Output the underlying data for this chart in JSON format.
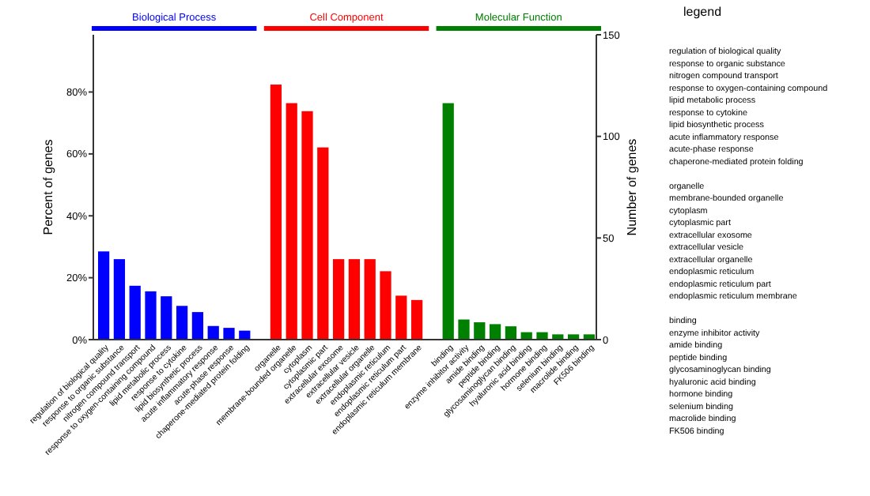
{
  "chart_data": {
    "type": "bar",
    "categories": [
      "regulation of biological quality",
      "response to organic substance",
      "nitrogen compound transport",
      "response to oxygen-containing compound",
      "lipid metabolic process",
      "response to cytokine",
      "lipid biosynthetic process",
      "acute inflammatory response",
      "acute-phase response",
      "chaperone-mediated protein folding",
      null,
      "organelle",
      "membrane-bounded organelle",
      "cytoplasm",
      "cytoplasmic part",
      "extracellular exosome",
      "extracellular vesicle",
      "extracellular organelle",
      "endoplasmic reticulum",
      "endoplasmic reticulum part",
      "endoplasmic reticulum membrane",
      null,
      "binding",
      "enzyme inhibitor activity",
      "amide binding",
      "peptide binding",
      "glycosaminoglycan binding",
      "hyaluronic acid binding",
      "hormone binding",
      "selenium binding",
      "macrolide binding",
      "FK506 binding"
    ],
    "series": [
      {
        "name": "Biological Process",
        "color": "#0000ff",
        "values": [
          28.5,
          26.0,
          17.4,
          15.6,
          14.0,
          10.9,
          8.9,
          4.4,
          3.8,
          2.9,
          null,
          null,
          null,
          null,
          null,
          null,
          null,
          null,
          null,
          null,
          null,
          null,
          null,
          null,
          null,
          null,
          null,
          null,
          null,
          null,
          null,
          null
        ]
      },
      {
        "name": "Cell Component",
        "color": "#ff0000",
        "values": [
          null,
          null,
          null,
          null,
          null,
          null,
          null,
          null,
          null,
          null,
          null,
          82.4,
          76.4,
          73.8,
          62.1,
          26.0,
          26.0,
          26.0,
          22.1,
          14.2,
          12.8,
          null,
          null,
          null,
          null,
          null,
          null,
          null,
          null,
          null,
          null,
          null
        ]
      },
      {
        "name": "Molecular Function",
        "color": "#008000",
        "values": [
          null,
          null,
          null,
          null,
          null,
          null,
          null,
          null,
          null,
          null,
          null,
          null,
          null,
          null,
          null,
          null,
          null,
          null,
          null,
          null,
          null,
          null,
          76.4,
          6.5,
          5.6,
          5.0,
          4.3,
          2.4,
          2.4,
          1.7,
          1.7,
          1.7
        ]
      }
    ],
    "ylabel": "Percent of genes",
    "y2label": "Number of genes",
    "ylim": [
      0,
      98.5
    ],
    "yticks": [
      {
        "value": 0,
        "label": "0%"
      },
      {
        "value": 20,
        "label": "20%"
      },
      {
        "value": 40,
        "label": "40%"
      },
      {
        "value": 60,
        "label": "60%"
      },
      {
        "value": 80,
        "label": "80%"
      }
    ],
    "y2lim": [
      0,
      150
    ],
    "y2ticks": [
      0,
      50,
      100,
      150
    ],
    "legend": "top",
    "grid": false,
    "annotations": [
      "legend",
      "regulation of biological quality",
      "response to organic substance",
      "nitrogen compound transport",
      "response to oxygen-containing compound",
      "lipid metabolic process",
      "response to cytokine",
      "lipid biosynthetic process",
      "acute inflammatory response",
      "acute-phase response",
      "chaperone-mediated protein folding",
      "organelle",
      "membrane-bounded organelle",
      "cytoplasm",
      "cytoplasmic part",
      "extracellular exosome",
      "extracellular vesicle",
      "extracellular organelle",
      "endoplasmic reticulum",
      "endoplasmic reticulum part",
      "endoplasmic reticulum membrane",
      "binding",
      "enzyme inhibitor activity",
      "amide binding",
      "peptide binding",
      "glycosaminoglycan binding",
      "hyaluronic acid binding",
      "hormone binding",
      "selenium binding",
      "macrolide binding",
      "FK506 binding"
    ]
  }
}
